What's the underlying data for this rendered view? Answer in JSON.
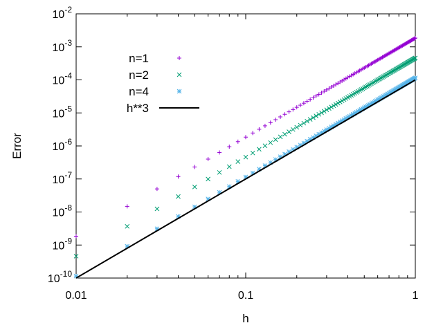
{
  "chart_data": {
    "type": "scatter",
    "title": "",
    "xlabel": "h",
    "ylabel": "Error",
    "xscale": "log",
    "yscale": "log",
    "xlim": [
      0.01,
      1
    ],
    "ylim": [
      1e-10,
      0.01
    ],
    "grid": false,
    "legend_position": "top-left inside",
    "x_ticks": [
      {
        "value": 0.01,
        "label": "0.01"
      },
      {
        "value": 0.1,
        "label": "0.1"
      },
      {
        "value": 1,
        "label": "1"
      }
    ],
    "y_ticks": [
      {
        "value": 1e-10,
        "base": "10",
        "exp": "-10"
      },
      {
        "value": 1e-09,
        "base": "10",
        "exp": "-9"
      },
      {
        "value": 1e-08,
        "base": "10",
        "exp": "-8"
      },
      {
        "value": 1e-07,
        "base": "10",
        "exp": "-7"
      },
      {
        "value": 1e-06,
        "base": "10",
        "exp": "-6"
      },
      {
        "value": 1e-05,
        "base": "10",
        "exp": "-5"
      },
      {
        "value": 0.0001,
        "base": "10",
        "exp": "-4"
      },
      {
        "value": 0.001,
        "base": "10",
        "exp": "-3"
      },
      {
        "value": 0.01,
        "base": "10",
        "exp": "-2"
      }
    ],
    "x_sample": {
      "start": 0.01,
      "step": 0.01,
      "count": 100
    },
    "series": [
      {
        "name": "n=1",
        "marker": "plus",
        "color": "#9400d3",
        "values": "error ≈ 1.85e-3 · h^3"
      },
      {
        "name": "n=2",
        "marker": "cross",
        "color": "#009e73",
        "values": "error ≈ 4.6e-4 · h^3"
      },
      {
        "name": "n=4",
        "marker": "star",
        "color": "#56b4e9",
        "values": "error ≈ 1.15e-4 · h^3"
      },
      {
        "name": "h**3",
        "marker": "line",
        "color": "#000000",
        "values": "h^3 · 1e-4"
      }
    ],
    "coefficients": [
      0.00185,
      0.00046,
      0.000115,
      0.0001
    ]
  }
}
